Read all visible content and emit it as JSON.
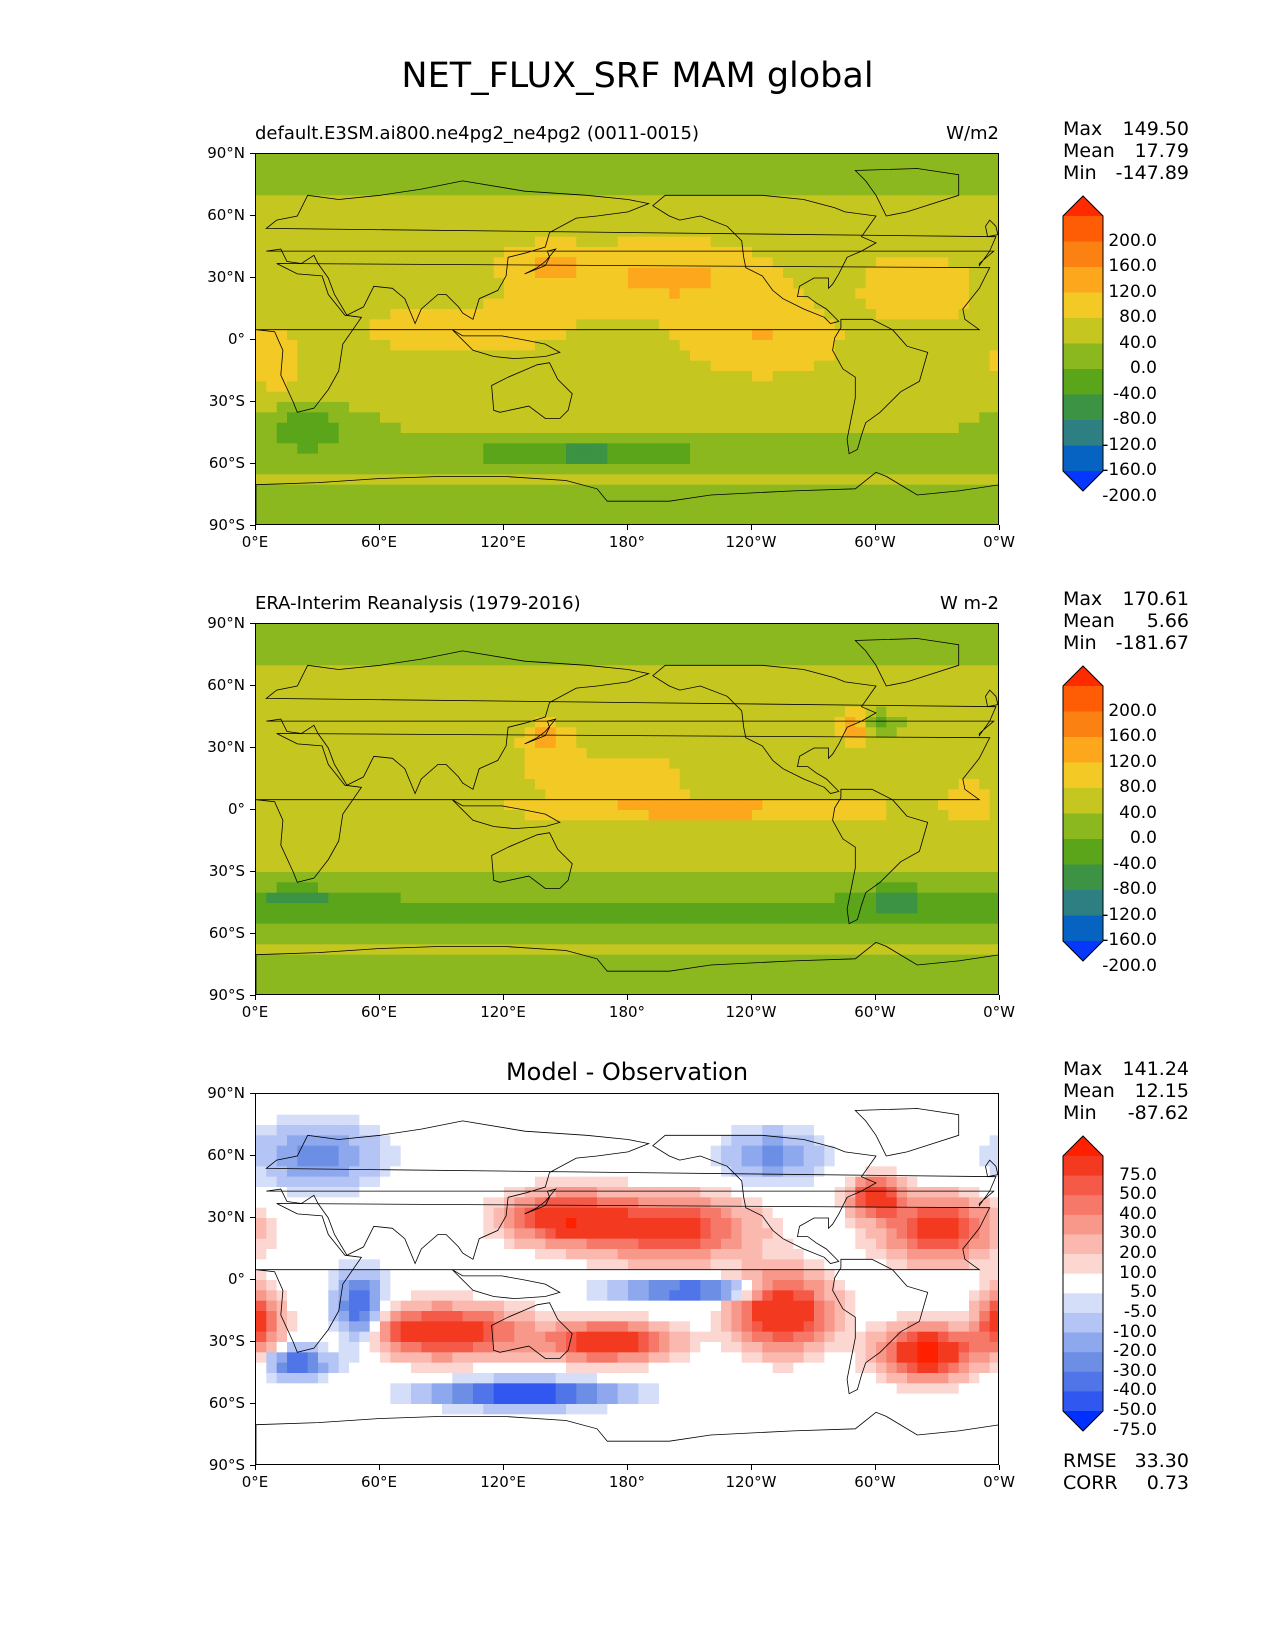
{
  "figure": {
    "title": "NET_FLUX_SRF MAM global",
    "panels": [
      {
        "id": "model",
        "title_left": "default.E3SM.ai800.ne4pg2_ne4pg2 (0011-0015)",
        "title_center": "",
        "title_right": "W/m2",
        "stats": [
          {
            "label": "Max",
            "value": "149.50"
          },
          {
            "label": "Mean",
            "value": "17.79"
          },
          {
            "label": "Min",
            "value": "-147.89"
          }
        ],
        "colorbar": {
          "colors": [
            "#0537ff",
            "#0763c2",
            "#2d7f82",
            "#3b9343",
            "#5aa51a",
            "#8cb81f",
            "#c6c621",
            "#f3c926",
            "#fca71c",
            "#fb8112",
            "#ff5d05",
            "#ff2a00"
          ],
          "labels": [
            "200.0",
            "160.0",
            "120.0",
            "80.0",
            "40.0",
            "0.0",
            "-40.0",
            "-80.0",
            "-120.0",
            "-160.0",
            "-200.0"
          ]
        },
        "extra_stats": []
      },
      {
        "id": "obs",
        "title_left": "ERA-Interim Reanalysis (1979-2016)",
        "title_center": "",
        "title_right": "W m-2",
        "stats": [
          {
            "label": "Max",
            "value": "170.61"
          },
          {
            "label": "Mean",
            "value": "5.66"
          },
          {
            "label": "Min",
            "value": "-181.67"
          }
        ],
        "colorbar": {
          "colors": [
            "#0537ff",
            "#0763c2",
            "#2d7f82",
            "#3b9343",
            "#5aa51a",
            "#8cb81f",
            "#c6c621",
            "#f3c926",
            "#fca71c",
            "#fb8112",
            "#ff5d05",
            "#ff2a00"
          ],
          "labels": [
            "200.0",
            "160.0",
            "120.0",
            "80.0",
            "40.0",
            "0.0",
            "-40.0",
            "-80.0",
            "-120.0",
            "-160.0",
            "-200.0"
          ]
        },
        "extra_stats": []
      },
      {
        "id": "diff",
        "title_left": "",
        "title_center": "Model - Observation",
        "title_right": "",
        "stats": [
          {
            "label": "Max",
            "value": "141.24"
          },
          {
            "label": "Mean",
            "value": "12.15"
          },
          {
            "label": "Min",
            "value": "-87.62"
          }
        ],
        "colorbar": {
          "colors": [
            "#0030ff",
            "#3058f0",
            "#5075e8",
            "#6d8ee5",
            "#8ea8ee",
            "#b3c4f5",
            "#d5def9",
            "#ffffff",
            "#fcd7d2",
            "#fab8ae",
            "#f8988a",
            "#f57868",
            "#f55a48",
            "#f33a20",
            "#ff2000"
          ],
          "labels": [
            "75.0",
            "50.0",
            "40.0",
            "30.0",
            "20.0",
            "10.0",
            "5.0",
            "-5.0",
            "-10.0",
            "-20.0",
            "-30.0",
            "-40.0",
            "-50.0",
            "-75.0"
          ]
        },
        "extra_stats": [
          {
            "label": "RMSE",
            "value": "33.30"
          },
          {
            "label": "CORR",
            "value": "0.73"
          }
        ]
      }
    ],
    "x_ticks": [
      "0°E",
      "60°E",
      "120°E",
      "180°",
      "120°W",
      "60°W",
      "0°W"
    ],
    "y_ticks": [
      "90°N",
      "60°N",
      "30°N",
      "0°",
      "30°S",
      "60°S",
      "90°S"
    ]
  }
}
